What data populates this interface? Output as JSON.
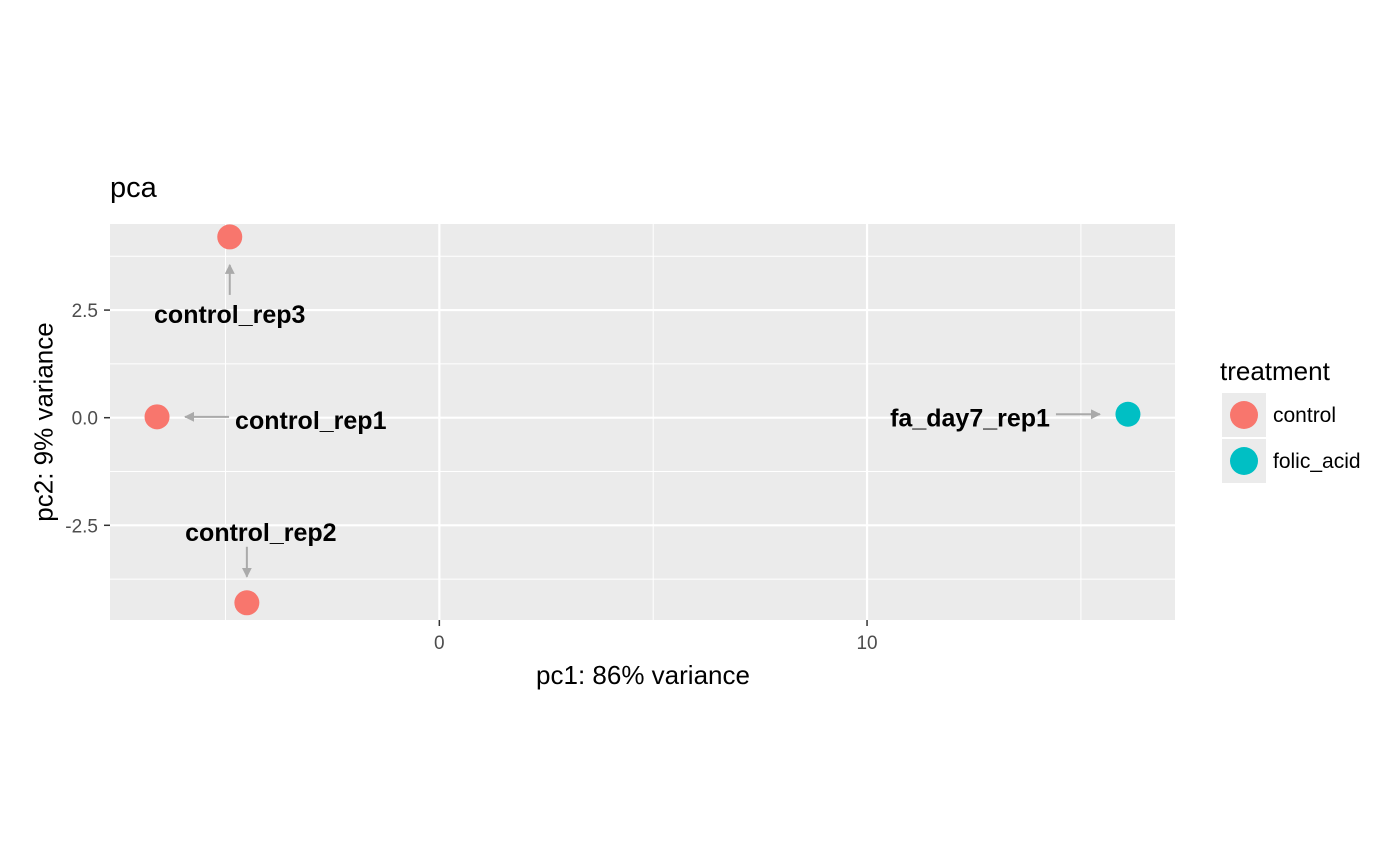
{
  "chart_data": {
    "type": "scatter",
    "title": "pca",
    "xlabel": "pc1: 86% variance",
    "ylabel": "pc2: 9% variance",
    "xlim": [
      -7.7,
      17.2
    ],
    "ylim": [
      -4.7,
      4.5
    ],
    "x_ticks": [
      0,
      10
    ],
    "y_ticks": [
      -2.5,
      0.0,
      2.5
    ],
    "y_tick_labels": [
      "-2.5",
      "0.0",
      "2.5"
    ],
    "grid": true,
    "legend": {
      "title": "treatment",
      "position": "right",
      "entries": [
        {
          "name": "control",
          "color": "#F8766D"
        },
        {
          "name": "folic_acid",
          "color": "#00BFC4"
        }
      ]
    },
    "points": [
      {
        "label": "control_rep3",
        "treatment": "control",
        "x": -4.9,
        "y": 4.2
      },
      {
        "label": "control_rep1",
        "treatment": "control",
        "x": -6.6,
        "y": 0.02
      },
      {
        "label": "control_rep2",
        "treatment": "control",
        "x": -4.5,
        "y": -4.3
      },
      {
        "label": "fa_day7_rep1",
        "treatment": "folic_acid",
        "x": 16.1,
        "y": 0.08
      }
    ]
  }
}
